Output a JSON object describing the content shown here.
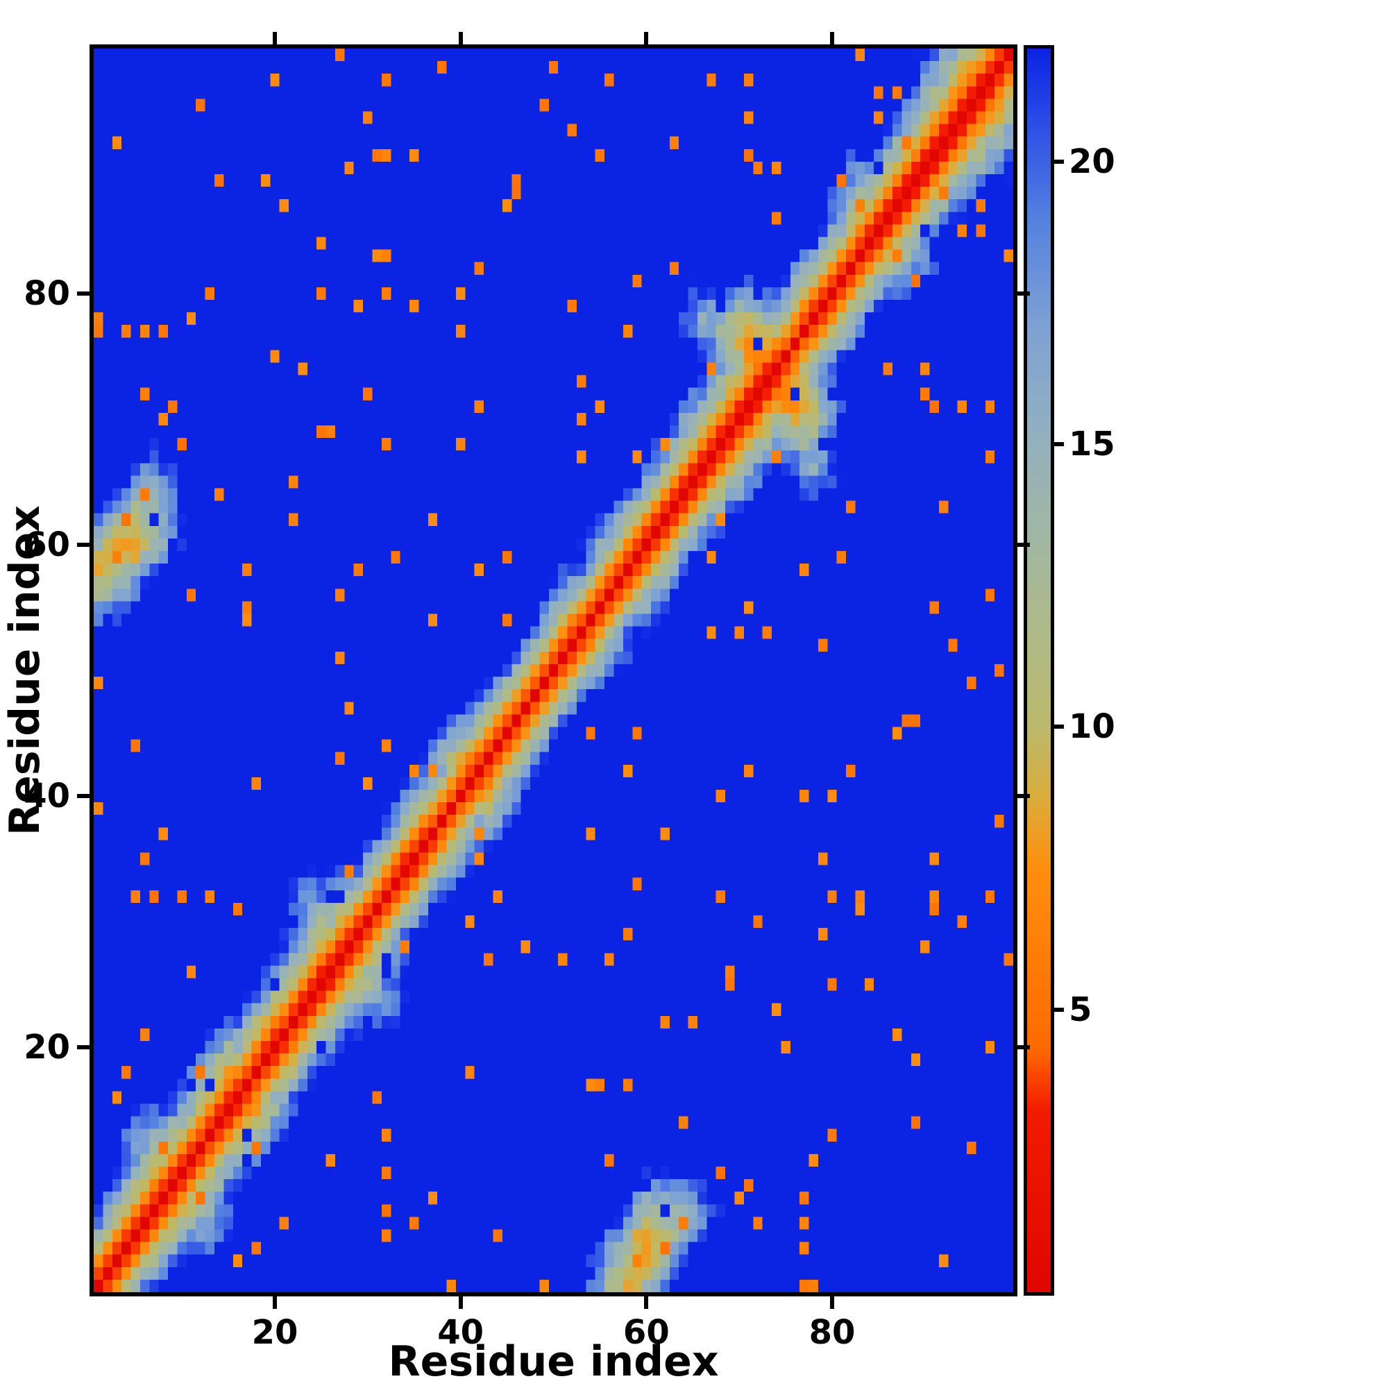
{
  "chart_data": {
    "type": "heatmap",
    "title": "",
    "xlabel": "Residue index",
    "ylabel": "Residue index",
    "x_ticks": [
      20,
      40,
      60,
      80
    ],
    "y_ticks": [
      20,
      40,
      60,
      80
    ],
    "axis_range": [
      1,
      99
    ],
    "n_residues": 99,
    "value_min": 0,
    "value_max": 22,
    "colorbar_ticks": [
      5,
      10,
      15,
      20
    ],
    "colorbar_side": "right",
    "colormap_stops": [
      [
        0.0,
        "#e10600"
      ],
      [
        3.2,
        "#f31b00"
      ],
      [
        4.3,
        "#ff6a00"
      ],
      [
        7.5,
        "#ff8f0e"
      ],
      [
        8.8,
        "#d9ae3e"
      ],
      [
        10.0,
        "#bcb96d"
      ],
      [
        11.5,
        "#b0ba85"
      ],
      [
        13.0,
        "#a4b89d"
      ],
      [
        15.0,
        "#95b1bd"
      ],
      [
        17.0,
        "#7fa3d3"
      ],
      [
        19.0,
        "#5581e0"
      ],
      [
        20.8,
        "#2a4ae8"
      ],
      [
        22.0,
        "#0b24e4"
      ]
    ],
    "clip_color": "#0b24e4",
    "grid": false,
    "matrix": {
      "kind": "pairwise-distance-of-synthetic-chain",
      "seed": 20,
      "step_length": 3.8,
      "persistence": 1.2,
      "drift_strength": 0.45,
      "confinement": 0.012,
      "speckle": true,
      "clip_at": 22
    }
  },
  "styles": {
    "background": "#ffffff",
    "axis_color": "#000000",
    "text_color": "#000000"
  }
}
